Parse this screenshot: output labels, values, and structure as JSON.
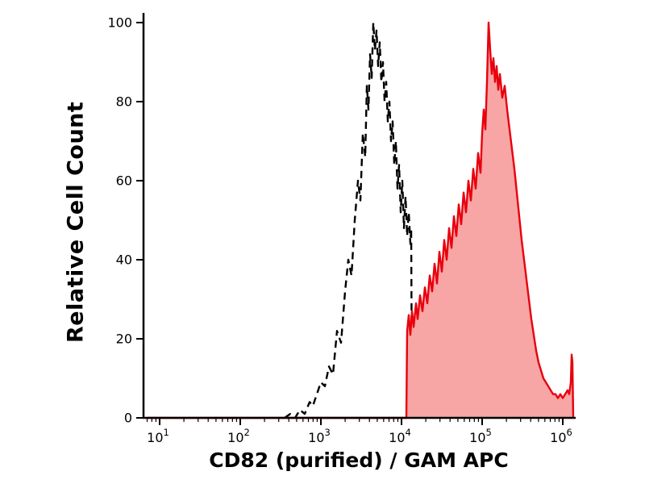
{
  "chart_data": {
    "type": "line",
    "subtype": "flow-cytometry-histogram",
    "xlabel": "CD82 (purified) / GAM APC",
    "ylabel": "Relative Cell Count",
    "x_scale": "log10",
    "xlim_log10": [
      0.8,
      6.14
    ],
    "ylim": [
      0,
      100
    ],
    "x_ticks_exponents": [
      1,
      2,
      3,
      4,
      5,
      6
    ],
    "x_tick_base": "10",
    "y_ticks": [
      0,
      20,
      40,
      60,
      80,
      100
    ],
    "grid": false,
    "legend": "none",
    "axis_color": "#000000",
    "background_color": "#ffffff",
    "series": [
      {
        "name": "dashed-black-control-histogram",
        "color": "#000000",
        "line_style": "dashed",
        "fill": "none",
        "points": [
          [
            2.55,
            0
          ],
          [
            2.62,
            1
          ],
          [
            2.68,
            0
          ],
          [
            2.74,
            2
          ],
          [
            2.8,
            1
          ],
          [
            2.86,
            4
          ],
          [
            2.9,
            3
          ],
          [
            2.95,
            6
          ],
          [
            3.0,
            9
          ],
          [
            3.05,
            8
          ],
          [
            3.1,
            13
          ],
          [
            3.15,
            11
          ],
          [
            3.2,
            22
          ],
          [
            3.25,
            19
          ],
          [
            3.3,
            32
          ],
          [
            3.34,
            40
          ],
          [
            3.38,
            36
          ],
          [
            3.42,
            50
          ],
          [
            3.46,
            60
          ],
          [
            3.49,
            55
          ],
          [
            3.52,
            72
          ],
          [
            3.55,
            66
          ],
          [
            3.57,
            84
          ],
          [
            3.59,
            78
          ],
          [
            3.61,
            92
          ],
          [
            3.63,
            86
          ],
          [
            3.65,
            100
          ],
          [
            3.67,
            93
          ],
          [
            3.69,
            98
          ],
          [
            3.71,
            89
          ],
          [
            3.73,
            95
          ],
          [
            3.75,
            85
          ],
          [
            3.77,
            90
          ],
          [
            3.79,
            80
          ],
          [
            3.81,
            85
          ],
          [
            3.83,
            75
          ],
          [
            3.85,
            80
          ],
          [
            3.87,
            70
          ],
          [
            3.89,
            75
          ],
          [
            3.91,
            64
          ],
          [
            3.93,
            70
          ],
          [
            3.95,
            58
          ],
          [
            3.97,
            64
          ],
          [
            3.99,
            52
          ],
          [
            4.01,
            60
          ],
          [
            4.03,
            48
          ],
          [
            4.05,
            56
          ],
          [
            4.07,
            46
          ],
          [
            4.09,
            52
          ],
          [
            4.11,
            44
          ],
          [
            4.12,
            48
          ],
          [
            4.13,
            0
          ]
        ]
      },
      {
        "name": "red-filled-stained-histogram",
        "color": "#e8000d",
        "line_style": "solid",
        "fill": "#f8a5a5",
        "points": [
          [
            0.85,
            0
          ],
          [
            4.06,
            0
          ],
          [
            4.07,
            22
          ],
          [
            4.09,
            26
          ],
          [
            4.11,
            21
          ],
          [
            4.13,
            27
          ],
          [
            4.15,
            23
          ],
          [
            4.18,
            29
          ],
          [
            4.2,
            25
          ],
          [
            4.23,
            31
          ],
          [
            4.26,
            27
          ],
          [
            4.29,
            33
          ],
          [
            4.32,
            29
          ],
          [
            4.35,
            36
          ],
          [
            4.38,
            32
          ],
          [
            4.41,
            39
          ],
          [
            4.44,
            34
          ],
          [
            4.47,
            42
          ],
          [
            4.5,
            37
          ],
          [
            4.53,
            45
          ],
          [
            4.56,
            40
          ],
          [
            4.59,
            48
          ],
          [
            4.62,
            43
          ],
          [
            4.65,
            51
          ],
          [
            4.68,
            46
          ],
          [
            4.71,
            54
          ],
          [
            4.74,
            49
          ],
          [
            4.77,
            57
          ],
          [
            4.8,
            52
          ],
          [
            4.83,
            60
          ],
          [
            4.86,
            55
          ],
          [
            4.89,
            63
          ],
          [
            4.92,
            58
          ],
          [
            4.95,
            67
          ],
          [
            4.98,
            62
          ],
          [
            5.0,
            72
          ],
          [
            5.02,
            78
          ],
          [
            5.04,
            73
          ],
          [
            5.06,
            85
          ],
          [
            5.08,
            100
          ],
          [
            5.1,
            93
          ],
          [
            5.12,
            87
          ],
          [
            5.14,
            91
          ],
          [
            5.16,
            85
          ],
          [
            5.18,
            89
          ],
          [
            5.2,
            83
          ],
          [
            5.22,
            87
          ],
          [
            5.25,
            81
          ],
          [
            5.28,
            84
          ],
          [
            5.31,
            78
          ],
          [
            5.34,
            73
          ],
          [
            5.37,
            68
          ],
          [
            5.4,
            63
          ],
          [
            5.43,
            57
          ],
          [
            5.46,
            51
          ],
          [
            5.49,
            45
          ],
          [
            5.52,
            40
          ],
          [
            5.55,
            35
          ],
          [
            5.58,
            30
          ],
          [
            5.61,
            25
          ],
          [
            5.64,
            21
          ],
          [
            5.67,
            17
          ],
          [
            5.7,
            14
          ],
          [
            5.73,
            12
          ],
          [
            5.76,
            10
          ],
          [
            5.79,
            9
          ],
          [
            5.82,
            8
          ],
          [
            5.85,
            7
          ],
          [
            5.88,
            6
          ],
          [
            5.91,
            6
          ],
          [
            5.94,
            5
          ],
          [
            5.97,
            6
          ],
          [
            6.0,
            5
          ],
          [
            6.03,
            6
          ],
          [
            6.06,
            7
          ],
          [
            6.08,
            6
          ],
          [
            6.1,
            9
          ],
          [
            6.11,
            16
          ],
          [
            6.12,
            14
          ],
          [
            6.13,
            0
          ]
        ]
      }
    ]
  }
}
